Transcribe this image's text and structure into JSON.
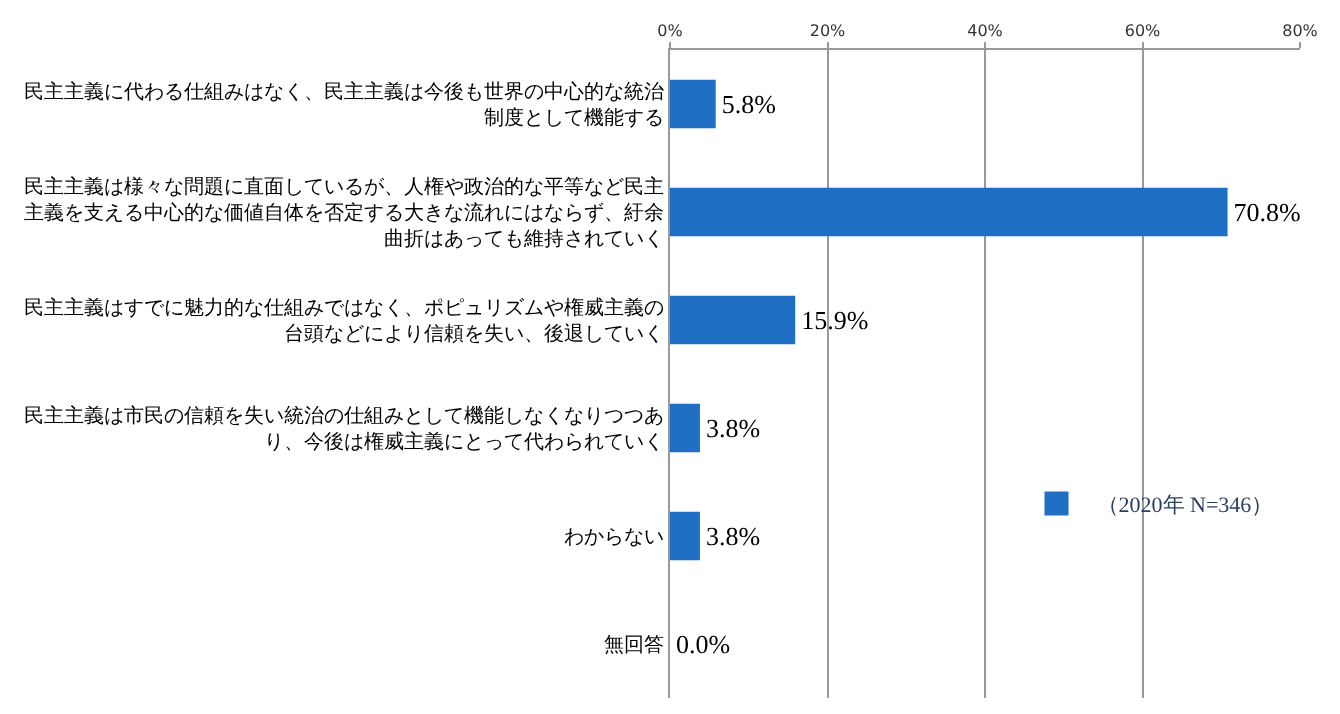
{
  "chart_data": {
    "type": "bar",
    "orientation": "horizontal",
    "categories": [
      "民主主義に代わる仕組みはなく、民主主義は今後も世界の中心的な統治制度として機能する",
      "民主主義は様々な問題に直面しているが、人権や政治的な平等など民主主義を支える中心的な価値自体を否定する大きな流れにはならず、紆余曲折はあっても維持されていく",
      "民主主義はすでに魅力的な仕組みではなく、ポピュリズムや権威主義の台頭などにより信頼を失い、後退していく",
      "民主主義は市民の信頼を失い統治の仕組みとして機能しなくなりつつあり、今後は権威主義にとって代わられていく",
      "わからない",
      "無回答"
    ],
    "series": [
      {
        "name": "（2020年 N=346）",
        "color": "#1f6fc4",
        "values": [
          5.8,
          70.8,
          15.9,
          3.8,
          3.8,
          0.0
        ],
        "value_labels": [
          "5.8%",
          "70.8%",
          "15.9%",
          "3.8%",
          "3.8%",
          "0.0%"
        ]
      }
    ],
    "xlim": [
      0,
      80
    ],
    "xticks": [
      {
        "value": 0,
        "label": "0%"
      },
      {
        "value": 20,
        "label": "20%"
      },
      {
        "value": 40,
        "label": "40%"
      },
      {
        "value": 60,
        "label": "60%"
      },
      {
        "value": 80,
        "label": "80%"
      }
    ],
    "grid": "x",
    "legend": "bottom right"
  }
}
